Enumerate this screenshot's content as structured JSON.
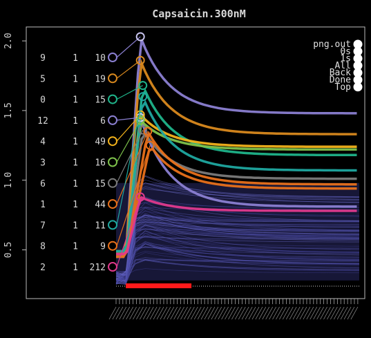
{
  "chart_data": {
    "type": "line",
    "title": "Capsaicin.300nM",
    "xlabel": "",
    "ylabel": "",
    "ylim": [
      0.15,
      2.1
    ],
    "y_ticks": [
      "0.5",
      "1.0",
      "1.5",
      "2.0"
    ],
    "y_tick_values": [
      0.5,
      1.0,
      1.5,
      2.0
    ],
    "grid": false,
    "background": "#000000",
    "trace_count_label": "212",
    "x_range": [
      0,
      100
    ],
    "stimulus_bar": {
      "x0": 4,
      "x1": 31,
      "color": "#ff1a1a"
    },
    "legend_buttons": {
      "placement": "top-right",
      "labels": [
        "png.out",
        "0s",
        "1s",
        "All",
        "Back",
        "Done",
        "Top"
      ]
    },
    "rows": [
      {
        "a": "9",
        "b": "1",
        "c": "10",
        "color": "#8b80d2",
        "y": 1.87,
        "x": 10,
        "p": 2.03,
        "e": 1.48
      },
      {
        "a": "5",
        "b": "1",
        "c": "19",
        "color": "#d9891e",
        "y": 1.61,
        "x": 10,
        "p": 1.86,
        "e": 1.33
      },
      {
        "a": "0",
        "b": "1",
        "c": "15",
        "color": "#1fb48a",
        "y": 1.35,
        "x": 11,
        "p": 1.68,
        "e": 1.18
      },
      {
        "a": "12",
        "b": "1",
        "c": "6",
        "color": "#8b80d2",
        "y": 1.09,
        "x": 10,
        "p": 1.45,
        "e": 0.81
      },
      {
        "a": "4",
        "b": "1",
        "c": "49",
        "color": "#f2b21b",
        "y": 0.83,
        "x": 10,
        "p": 1.47,
        "e": 1.24
      },
      {
        "a": "3",
        "b": "1",
        "c": "16",
        "color": "#7ec24b",
        "y": 0.57,
        "x": 10,
        "p": 1.43,
        "e": 1.22
      },
      {
        "a": "6",
        "b": "1",
        "c": "15",
        "color": "#7a7a7a",
        "y": 0.31,
        "x": 11,
        "p": 1.36,
        "e": 1.01
      },
      {
        "a": "1",
        "b": "1",
        "c": "44",
        "color": "#e8701a",
        "y": 0.05,
        "x": 13,
        "p": 1.35,
        "e": 0.97
      },
      {
        "a": "7",
        "b": "1",
        "c": "11",
        "color": "#1fa8a0",
        "y": -0.21,
        "x": 11,
        "p": 1.6,
        "e": 1.07
      },
      {
        "a": "8",
        "b": "1",
        "c": "9",
        "color": "#e8701a",
        "y": -0.47,
        "x": 14,
        "p": 1.25,
        "e": 0.94
      },
      {
        "a": "2",
        "b": "1",
        "c": "212",
        "color": "#e0398c",
        "y": -0.73,
        "x": 10,
        "p": 0.88,
        "e": 0.78
      }
    ]
  }
}
